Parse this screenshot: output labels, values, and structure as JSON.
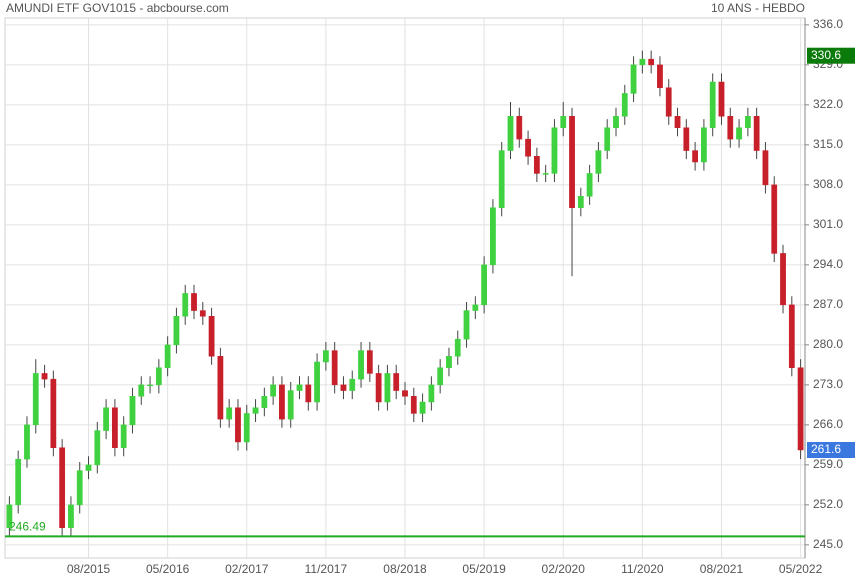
{
  "chart_data": {
    "type": "candlestick",
    "title": "AMUNDI ETF GOV1015 - abcbourse.com",
    "subtitle": "10 ANS - HEBDO",
    "categories": [
      null,
      null,
      null,
      null,
      null,
      null,
      null,
      null,
      null,
      "08/2015",
      null,
      null,
      null,
      null,
      null,
      null,
      null,
      null,
      "05/2016",
      null,
      null,
      null,
      null,
      null,
      null,
      null,
      null,
      "02/2017",
      null,
      null,
      null,
      null,
      null,
      null,
      null,
      null,
      "11/2017",
      null,
      null,
      null,
      null,
      null,
      null,
      null,
      null,
      "08/2018",
      null,
      null,
      null,
      null,
      null,
      null,
      null,
      null,
      "05/2019",
      null,
      null,
      null,
      null,
      null,
      null,
      null,
      null,
      "02/2020",
      null,
      null,
      null,
      null,
      null,
      null,
      null,
      null,
      "11/2020",
      null,
      null,
      null,
      null,
      null,
      null,
      null,
      null,
      "08/2021",
      null,
      null,
      null,
      null,
      null,
      null,
      null,
      null,
      "05/2022"
    ],
    "open": [
      248,
      252,
      260,
      266,
      275,
      274,
      262,
      248,
      252,
      258,
      259,
      265,
      269,
      262,
      266,
      271,
      273,
      273,
      276,
      280,
      285,
      289,
      286,
      285,
      278,
      267,
      269,
      263,
      268,
      269,
      271,
      273,
      267,
      272,
      273,
      270,
      277,
      279,
      273,
      272,
      274,
      279,
      275,
      270,
      275,
      272,
      271,
      268,
      270,
      273,
      276,
      278,
      281,
      286,
      287,
      294,
      304,
      314,
      320,
      316,
      313,
      310,
      310,
      318,
      320,
      304,
      306,
      310,
      314,
      318,
      320,
      324,
      329,
      330,
      329,
      325,
      320,
      318,
      314,
      312,
      318,
      326,
      320,
      316,
      318,
      320,
      314,
      308,
      296,
      287,
      276
    ],
    "high": [
      253.5,
      261.5,
      267.5,
      277.5,
      276.5,
      275.5,
      263.5,
      253.5,
      259.5,
      260.5,
      266.5,
      270.5,
      270.5,
      267.5,
      272.5,
      274.5,
      274.5,
      277.5,
      281.5,
      286.5,
      290.5,
      290.5,
      287.5,
      286.5,
      279.5,
      270.5,
      270.5,
      269.5,
      270.5,
      272.5,
      274.5,
      274.5,
      273.5,
      274.5,
      274.5,
      278.5,
      280.5,
      280.5,
      274.5,
      275.5,
      280.5,
      280.5,
      276.5,
      276.5,
      276.5,
      273.5,
      272.5,
      271.5,
      274.5,
      277.5,
      279.5,
      282.5,
      287.5,
      288.5,
      295.5,
      305.5,
      315.5,
      322.5,
      321.5,
      317.5,
      314.5,
      311.5,
      319.5,
      322.5,
      321.5,
      307.5,
      311.5,
      315.5,
      319.5,
      321.5,
      325.5,
      330.5,
      331.5,
      331.5,
      330.5,
      326.5,
      321.5,
      319.5,
      315.5,
      319.5,
      327.5,
      327.5,
      321.5,
      319.5,
      321.5,
      321.5,
      315.5,
      309.5,
      297.5,
      288.5,
      277.5
    ],
    "low": [
      246.5,
      250.5,
      258.5,
      264.5,
      272.5,
      260.5,
      246.5,
      246.5,
      250.5,
      256.5,
      257.5,
      263.5,
      260.5,
      260.5,
      264.5,
      269.5,
      271.5,
      271.5,
      274.5,
      278.5,
      283.5,
      284.5,
      283.5,
      276.5,
      265.5,
      265.5,
      261.5,
      261.5,
      266.5,
      267.5,
      269.5,
      265.5,
      265.5,
      270.5,
      268.5,
      268.5,
      275.5,
      271.5,
      270.5,
      270.5,
      272.5,
      273.5,
      268.5,
      268.5,
      270.5,
      269.5,
      266.5,
      266.5,
      268.5,
      271.5,
      274.5,
      276.5,
      279.5,
      284.5,
      285.5,
      292.5,
      302.5,
      312.5,
      314.5,
      311.5,
      308.5,
      308.5,
      308.5,
      316.5,
      292,
      302.5,
      304.5,
      308.5,
      312.5,
      316.5,
      318.5,
      322.5,
      327.5,
      327.5,
      323.5,
      318.5,
      316.5,
      312.5,
      310.5,
      310.5,
      316.5,
      318.5,
      314.5,
      314.5,
      316.5,
      312.5,
      306.5,
      294.5,
      285.5,
      274.5,
      260
    ],
    "close": [
      252,
      260,
      266,
      275,
      274,
      262,
      248,
      252,
      258,
      259,
      265,
      269,
      262,
      266,
      271,
      273,
      273,
      276,
      280,
      285,
      289,
      286,
      285,
      278,
      267,
      269,
      263,
      268,
      269,
      271,
      273,
      267,
      272,
      273,
      270,
      277,
      279,
      273,
      272,
      274,
      279,
      275,
      270,
      275,
      272,
      271,
      268,
      270,
      273,
      276,
      278,
      281,
      286,
      287,
      294,
      304,
      314,
      320,
      316,
      313,
      310,
      310,
      318,
      320,
      304,
      306,
      310,
      314,
      318,
      320,
      324,
      329,
      330,
      329,
      325,
      320,
      318,
      314,
      312,
      318,
      326,
      320,
      316,
      318,
      320,
      314,
      308,
      296,
      287,
      276,
      261.6
    ],
    "up_color": "#3fd13f",
    "down_color": "#c8202a",
    "ylim": [
      242.7,
      337.2
    ],
    "yticks": [
      {
        "value": 245,
        "label": "245.0"
      },
      {
        "value": 252,
        "label": "252.0"
      },
      {
        "value": 259,
        "label": "259.0"
      },
      {
        "value": 266,
        "label": "266.0"
      },
      {
        "value": 273,
        "label": "273.0"
      },
      {
        "value": 280,
        "label": "280.0"
      },
      {
        "value": 287,
        "label": "287.0"
      },
      {
        "value": 294,
        "label": "294.0"
      },
      {
        "value": 301,
        "label": "301.0"
      },
      {
        "value": 308,
        "label": "308.0"
      },
      {
        "value": 315,
        "label": "315.0"
      },
      {
        "value": 322,
        "label": "322.0"
      },
      {
        "value": 329,
        "label": "329.0"
      },
      {
        "value": 336,
        "label": "336.0"
      }
    ],
    "grid": true,
    "support_level": 246.49,
    "support_color": "#22aa22",
    "price_tags": [
      {
        "value": 330.6,
        "color": "#0a7a0a"
      },
      {
        "value": 261.6,
        "color": "#3a78e0"
      }
    ]
  }
}
